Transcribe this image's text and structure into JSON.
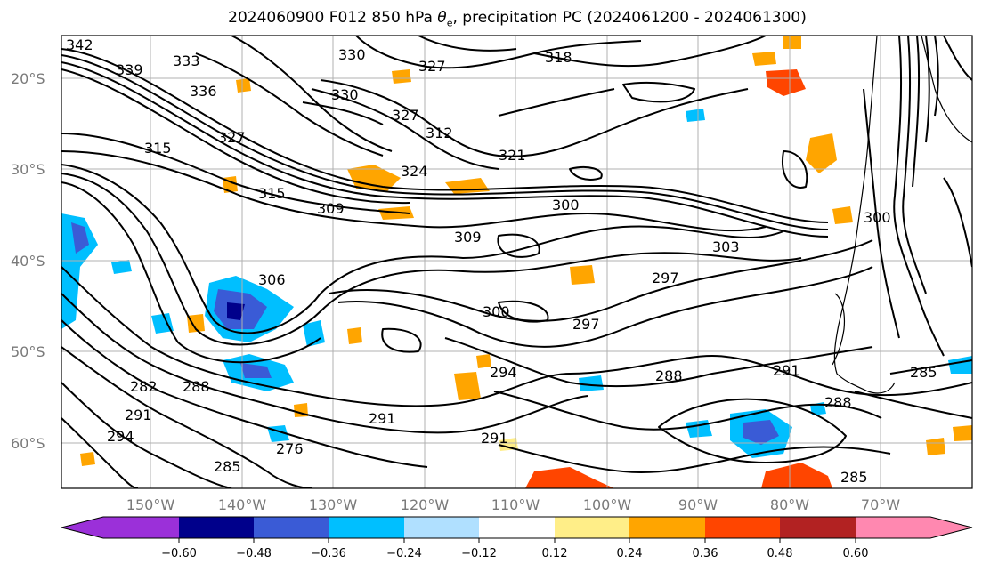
{
  "title": {
    "prefix": "2024060900 F012 850 hPa ",
    "symbol": "θ",
    "subscript": "e",
    "suffix": ", precipitation PC (2024061200 - 2024061300)"
  },
  "map": {
    "lat_ticks": [
      "20°S",
      "30°S",
      "40°S",
      "50°S",
      "60°S"
    ],
    "lon_ticks": [
      "150°W",
      "140°W",
      "130°W",
      "120°W",
      "110°W",
      "100°W",
      "90°W",
      "80°W",
      "70°W"
    ],
    "contour_labels": [
      "342",
      "339",
      "333",
      "336",
      "330",
      "327",
      "330",
      "327",
      "318",
      "315",
      "327",
      "312",
      "321",
      "324",
      "315",
      "309",
      "300",
      "300",
      "309",
      "306",
      "303",
      "297",
      "300",
      "297",
      "294",
      "288",
      "291",
      "285",
      "288",
      "282",
      "288",
      "291",
      "291",
      "294",
      "291",
      "276",
      "285",
      "285"
    ]
  },
  "colorbar": {
    "ticks": [
      "−0.60",
      "−0.48",
      "−0.36",
      "−0.24",
      "−0.12",
      "0.12",
      "0.24",
      "0.36",
      "0.48",
      "0.60"
    ],
    "colors": [
      "#9b30d9",
      "#00008b",
      "#3a5bd6",
      "#00bfff",
      "#b0e0ff",
      "#ffffff",
      "#ffee88",
      "#ffa500",
      "#ff4500",
      "#b22222",
      "#ff88b0"
    ]
  }
}
